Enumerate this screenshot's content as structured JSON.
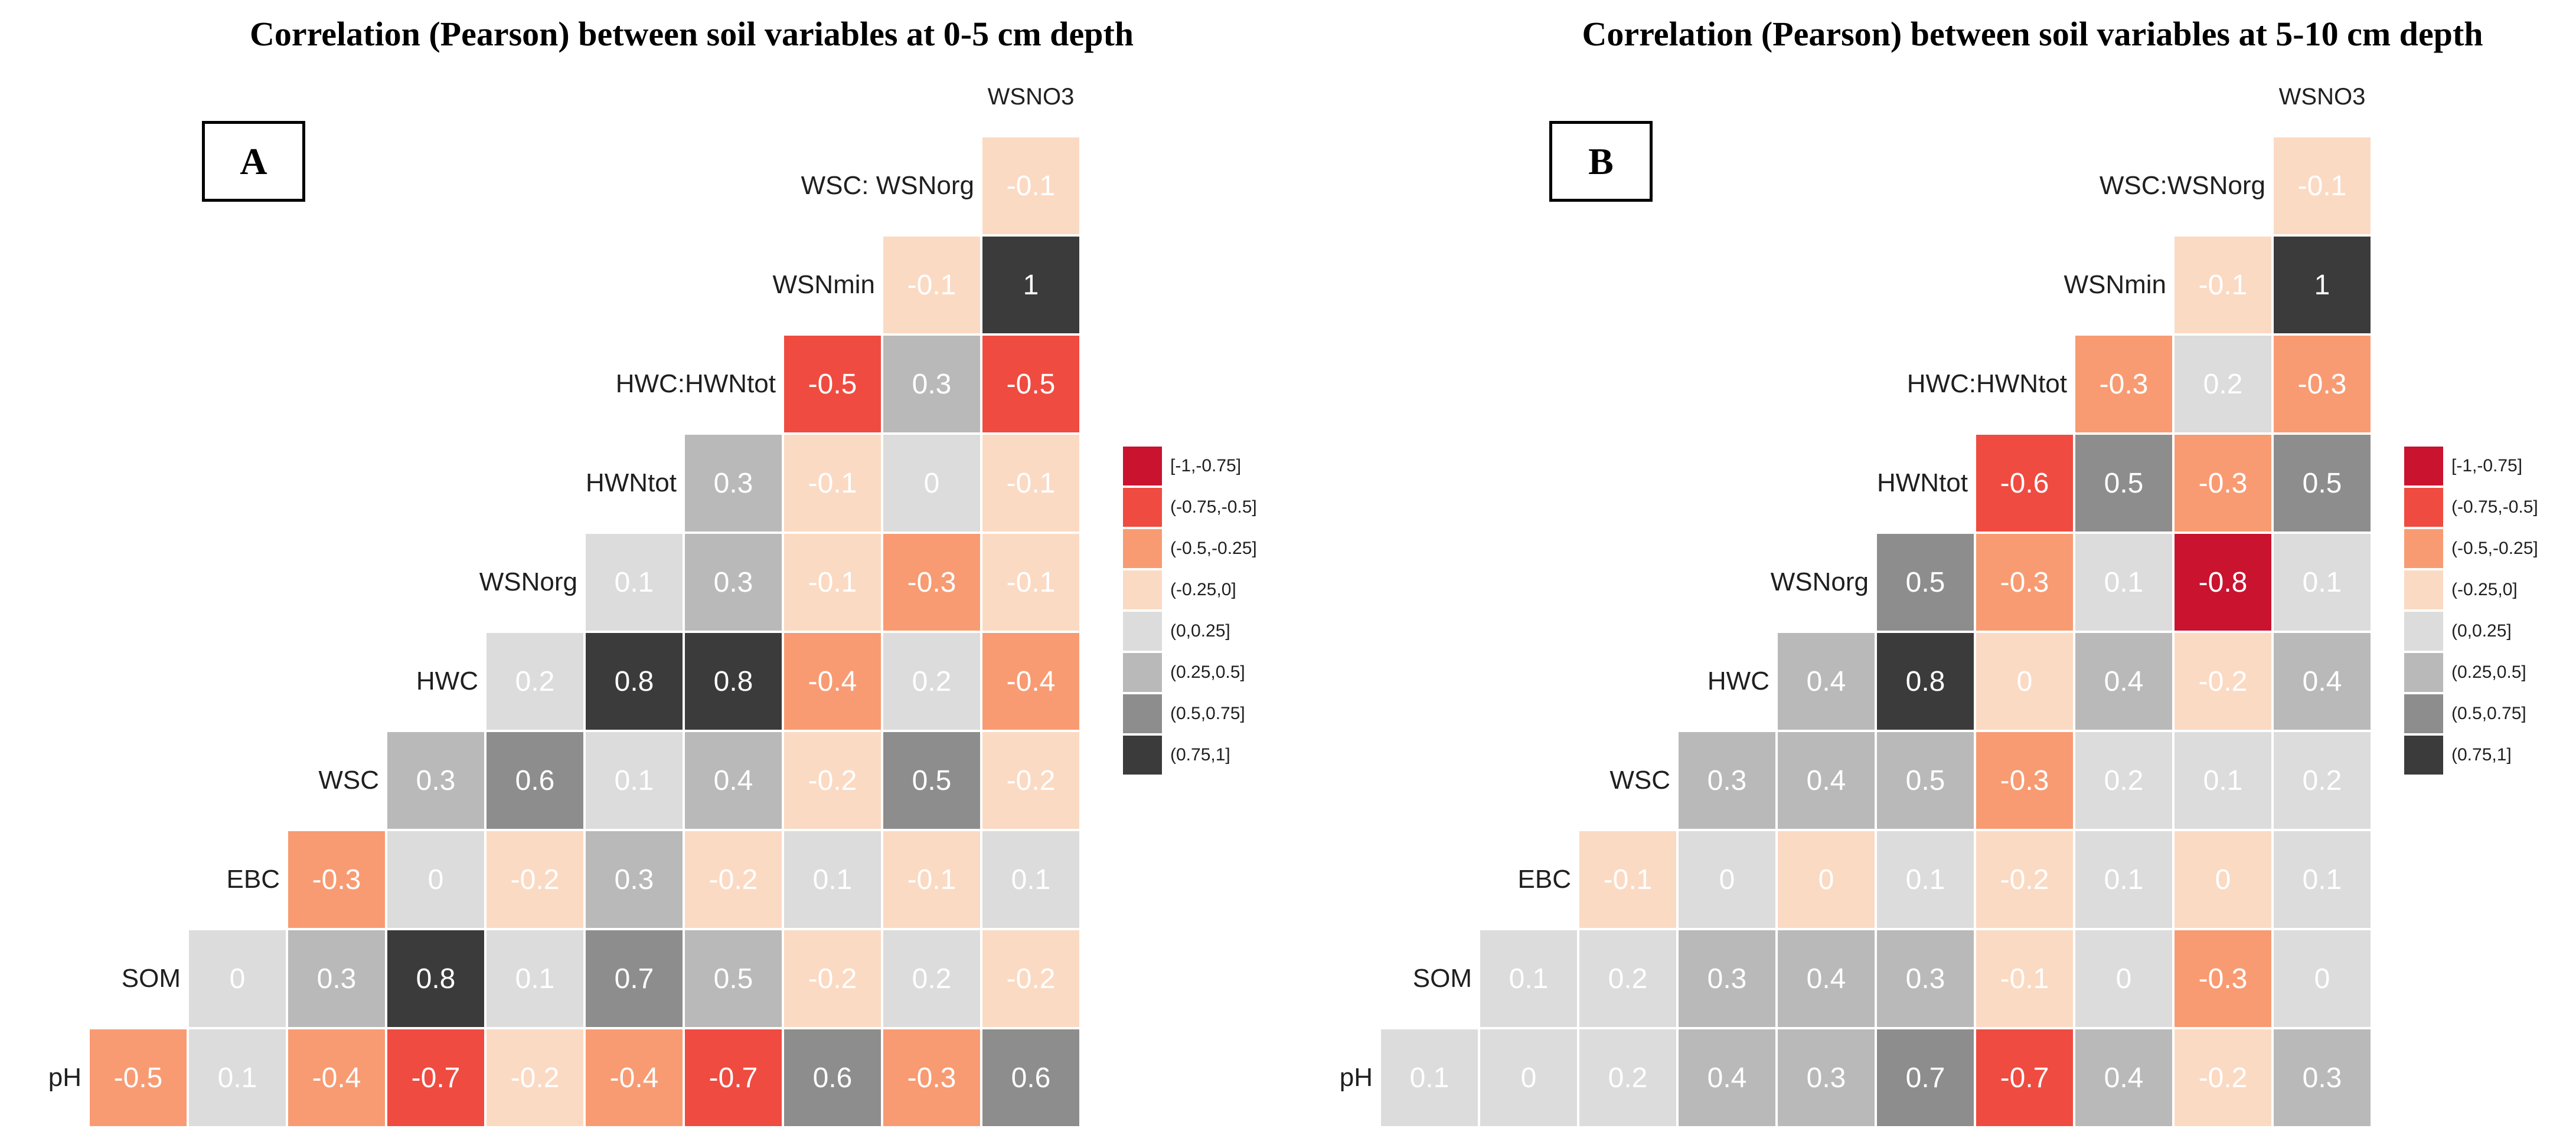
{
  "panels": [
    {
      "letter": "A",
      "title": "Correlation (Pearson) between soil variables at 0-5 cm depth",
      "top_variable": "WSNO3",
      "rows": [
        {
          "label": "WSC: WSNorg",
          "values": [
            "-0.1"
          ],
          "bins": [
            3
          ]
        },
        {
          "label": "WSNmin",
          "values": [
            "-0.1",
            "1"
          ],
          "bins": [
            3,
            7
          ]
        },
        {
          "label": "HWC:HWNtot",
          "values": [
            "-0.5",
            "0.3",
            "-0.5"
          ],
          "bins": [
            1,
            5,
            1
          ]
        },
        {
          "label": "HWNtot",
          "values": [
            "0.3",
            "-0.1",
            "0",
            "-0.1"
          ],
          "bins": [
            5,
            3,
            4,
            3
          ]
        },
        {
          "label": "WSNorg",
          "values": [
            "0.1",
            "0.3",
            "-0.1",
            "-0.3",
            "-0.1"
          ],
          "bins": [
            4,
            5,
            3,
            2,
            3
          ]
        },
        {
          "label": "HWC",
          "values": [
            "0.2",
            "0.8",
            "0.8",
            "-0.4",
            "0.2",
            "-0.4"
          ],
          "bins": [
            4,
            7,
            7,
            2,
            4,
            2
          ]
        },
        {
          "label": "WSC",
          "values": [
            "0.3",
            "0.6",
            "0.1",
            "0.4",
            "-0.2",
            "0.5",
            "-0.2"
          ],
          "bins": [
            5,
            6,
            4,
            5,
            3,
            6,
            3
          ]
        },
        {
          "label": "EBC",
          "values": [
            "-0.3",
            "0",
            "-0.2",
            "0.3",
            "-0.2",
            "0.1",
            "-0.1",
            "0.1"
          ],
          "bins": [
            2,
            4,
            3,
            5,
            3,
            4,
            3,
            4
          ]
        },
        {
          "label": "SOM",
          "values": [
            "0",
            "0.3",
            "0.8",
            "0.1",
            "0.7",
            "0.5",
            "-0.2",
            "0.2",
            "-0.2"
          ],
          "bins": [
            4,
            5,
            7,
            4,
            6,
            5,
            3,
            4,
            3
          ]
        },
        {
          "label": "pH",
          "values": [
            "-0.5",
            "0.1",
            "-0.4",
            "-0.7",
            "-0.2",
            "-0.4",
            "-0.7",
            "0.6",
            "-0.3",
            "0.6"
          ],
          "bins": [
            2,
            4,
            2,
            1,
            3,
            2,
            1,
            6,
            2,
            6
          ]
        }
      ]
    },
    {
      "letter": "B",
      "title": "Correlation (Pearson) between soil variables at 5-10 cm depth",
      "top_variable": "WSNO3",
      "rows": [
        {
          "label": "WSC:WSNorg",
          "values": [
            "-0.1"
          ],
          "bins": [
            3
          ]
        },
        {
          "label": "WSNmin",
          "values": [
            "-0.1",
            "1"
          ],
          "bins": [
            3,
            7
          ]
        },
        {
          "label": "HWC:HWNtot",
          "values": [
            "-0.3",
            "0.2",
            "-0.3"
          ],
          "bins": [
            2,
            4,
            2
          ]
        },
        {
          "label": "HWNtot",
          "values": [
            "-0.6",
            "0.5",
            "-0.3",
            "0.5"
          ],
          "bins": [
            1,
            6,
            2,
            6
          ]
        },
        {
          "label": "WSNorg",
          "values": [
            "0.5",
            "-0.3",
            "0.1",
            "-0.8",
            "0.1"
          ],
          "bins": [
            6,
            2,
            4,
            0,
            4
          ]
        },
        {
          "label": "HWC",
          "values": [
            "0.4",
            "0.8",
            "0",
            "0.4",
            "-0.2",
            "0.4"
          ],
          "bins": [
            5,
            7,
            3,
            5,
            3,
            5
          ]
        },
        {
          "label": "WSC",
          "values": [
            "0.3",
            "0.4",
            "0.5",
            "-0.3",
            "0.2",
            "0.1",
            "0.2"
          ],
          "bins": [
            5,
            5,
            5,
            2,
            4,
            4,
            4
          ]
        },
        {
          "label": "EBC",
          "values": [
            "-0.1",
            "0",
            "0",
            "0.1",
            "-0.2",
            "0.1",
            "0",
            "0.1"
          ],
          "bins": [
            3,
            4,
            3,
            4,
            3,
            4,
            3,
            4
          ]
        },
        {
          "label": "SOM",
          "values": [
            "0.1",
            "0.2",
            "0.3",
            "0.4",
            "0.3",
            "-0.1",
            "0",
            "-0.3",
            "0"
          ],
          "bins": [
            4,
            4,
            5,
            5,
            5,
            3,
            4,
            2,
            4
          ]
        },
        {
          "label": "pH",
          "values": [
            "0.1",
            "0",
            "0.2",
            "0.4",
            "0.3",
            "0.7",
            "-0.7",
            "0.4",
            "-0.2",
            "0.3"
          ],
          "bins": [
            4,
            4,
            4,
            5,
            5,
            6,
            1,
            5,
            3,
            5
          ]
        }
      ]
    }
  ],
  "legend": {
    "entries": [
      {
        "label": "[-1,-0.75]",
        "color": "#C9132F"
      },
      {
        "label": "(-0.75,-0.5]",
        "color": "#EF4B40"
      },
      {
        "label": "(-0.5,-0.25]",
        "color": "#F89B72"
      },
      {
        "label": "(-0.25,0]",
        "color": "#FBDAC3"
      },
      {
        "label": "(0,0.25]",
        "color": "#DCDCDC"
      },
      {
        "label": "(0.25,0.5]",
        "color": "#B9B9B9"
      },
      {
        "label": "(0.5,0.75]",
        "color": "#8D8D8D"
      },
      {
        "label": "(0.75,1]",
        "color": "#3B3B3B"
      }
    ]
  },
  "colors": {
    "background": "#ffffff",
    "cell_text": "#ffffff",
    "label_text": "#1f1f1f",
    "title_text": "#000000"
  },
  "chart_data": [
    {
      "type": "heatmap",
      "title": "Correlation (Pearson) between soil variables at 0-5 cm depth",
      "panel_letter": "A",
      "legend_position": "right",
      "legend_bins": [
        "[-1,-0.75]",
        "(-0.75,-0.5]",
        "(-0.5,-0.25]",
        "(-0.25,0]",
        "(0,0.25]",
        "(0.25,0.5]",
        "(0.5,0.75]",
        "(0.75,1]"
      ],
      "columns": [
        "SOM",
        "EBC",
        "WSC",
        "HWC",
        "WSNorg",
        "HWNtot",
        "HWC:HWNtot",
        "WSNmin",
        "WSC: WSNorg",
        "WSNO3"
      ],
      "rows": [
        {
          "label": "WSC: WSNorg",
          "values": [
            -0.1
          ]
        },
        {
          "label": "WSNmin",
          "values": [
            -0.1,
            1
          ]
        },
        {
          "label": "HWC:HWNtot",
          "values": [
            -0.5,
            0.3,
            -0.5
          ]
        },
        {
          "label": "HWNtot",
          "values": [
            0.3,
            -0.1,
            0,
            -0.1
          ]
        },
        {
          "label": "WSNorg",
          "values": [
            0.1,
            0.3,
            -0.1,
            -0.3,
            -0.1
          ]
        },
        {
          "label": "HWC",
          "values": [
            0.2,
            0.8,
            0.8,
            -0.4,
            0.2,
            -0.4
          ]
        },
        {
          "label": "WSC",
          "values": [
            0.3,
            0.6,
            0.1,
            0.4,
            -0.2,
            0.5,
            -0.2
          ]
        },
        {
          "label": "EBC",
          "values": [
            -0.3,
            0,
            -0.2,
            0.3,
            -0.2,
            0.1,
            -0.1,
            0.1
          ]
        },
        {
          "label": "SOM",
          "values": [
            0,
            0.3,
            0.8,
            0.1,
            0.7,
            0.5,
            -0.2,
            0.2,
            -0.2
          ]
        },
        {
          "label": "pH",
          "values": [
            -0.5,
            0.1,
            -0.4,
            -0.7,
            -0.2,
            -0.4,
            -0.7,
            0.6,
            -0.3,
            0.6
          ]
        }
      ]
    },
    {
      "type": "heatmap",
      "title": "Correlation (Pearson) between soil variables at 5-10 cm depth",
      "panel_letter": "B",
      "legend_position": "right",
      "legend_bins": [
        "[-1,-0.75]",
        "(-0.75,-0.5]",
        "(-0.5,-0.25]",
        "(-0.25,0]",
        "(0,0.25]",
        "(0.25,0.5]",
        "(0.5,0.75]",
        "(0.75,1]"
      ],
      "columns": [
        "SOM",
        "EBC",
        "WSC",
        "HWC",
        "WSNorg",
        "HWNtot",
        "HWC:HWNtot",
        "WSNmin",
        "WSC:WSNorg",
        "WSNO3"
      ],
      "rows": [
        {
          "label": "WSC:WSNorg",
          "values": [
            -0.1
          ]
        },
        {
          "label": "WSNmin",
          "values": [
            -0.1,
            1
          ]
        },
        {
          "label": "HWC:HWNtot",
          "values": [
            -0.3,
            0.2,
            -0.3
          ]
        },
        {
          "label": "HWNtot",
          "values": [
            -0.6,
            0.5,
            -0.3,
            0.5
          ]
        },
        {
          "label": "WSNorg",
          "values": [
            0.5,
            -0.3,
            0.1,
            -0.8,
            0.1
          ]
        },
        {
          "label": "HWC",
          "values": [
            0.4,
            0.8,
            0,
            0.4,
            -0.2,
            0.4
          ]
        },
        {
          "label": "WSC",
          "values": [
            0.3,
            0.4,
            0.5,
            -0.3,
            0.2,
            0.1,
            0.2
          ]
        },
        {
          "label": "EBC",
          "values": [
            -0.1,
            0,
            0,
            0.1,
            -0.2,
            0.1,
            0,
            0.1
          ]
        },
        {
          "label": "SOM",
          "values": [
            0.1,
            0.2,
            0.3,
            0.4,
            0.3,
            -0.1,
            0,
            -0.3,
            0
          ]
        },
        {
          "label": "pH",
          "values": [
            0.1,
            0,
            0.2,
            0.4,
            0.3,
            0.7,
            -0.7,
            0.4,
            -0.2,
            0.3
          ]
        }
      ]
    }
  ]
}
